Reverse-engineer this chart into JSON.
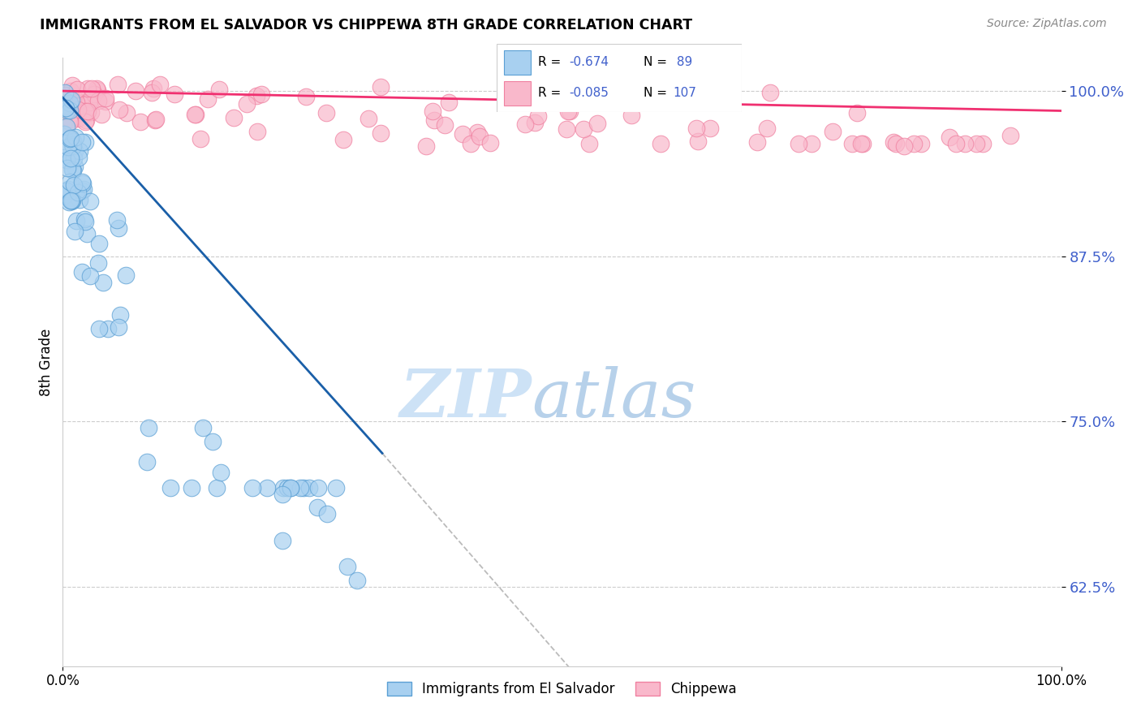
{
  "title": "IMMIGRANTS FROM EL SALVADOR VS CHIPPEWA 8TH GRADE CORRELATION CHART",
  "source": "Source: ZipAtlas.com",
  "ylabel": "8th Grade",
  "legend_blue_label": "Immigrants from El Salvador",
  "legend_pink_label": "Chippewa",
  "blue_color": "#a8d0f0",
  "pink_color": "#f9b8cb",
  "blue_edge_color": "#5a9fd4",
  "pink_edge_color": "#f080a0",
  "blue_line_color": "#1a5fa8",
  "pink_line_color": "#f03070",
  "n_color": "#4060cc",
  "R_label_color": "#000000",
  "ytick_color": "#4060cc",
  "watermark_zip_color": "#c8dff5",
  "watermark_atlas_color": "#b0cce8"
}
